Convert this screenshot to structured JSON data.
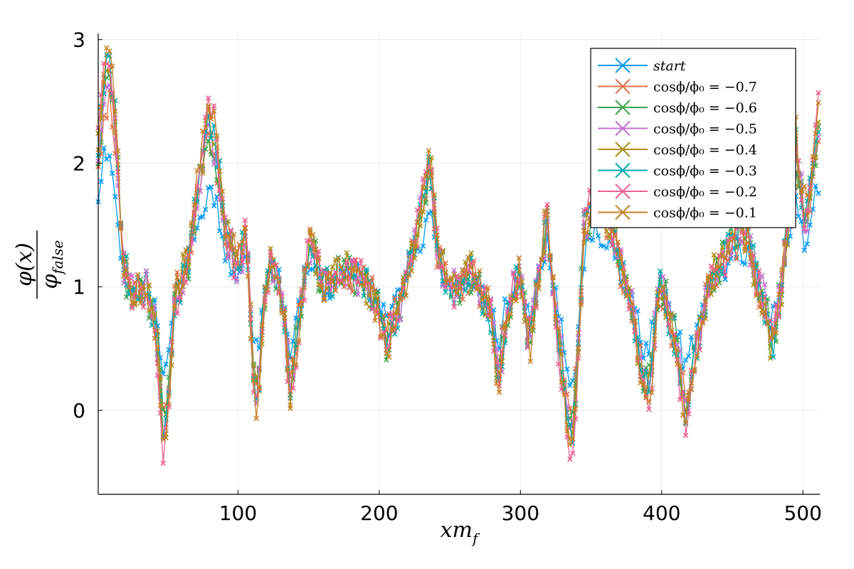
{
  "chart_data": {
    "type": "line",
    "markers": "x",
    "xlabel": "xm_f",
    "ylabel": "φ(x) / φ_false",
    "xlim": [
      1,
      512
    ],
    "ylim": [
      -0.68,
      3.05
    ],
    "x_ticks": [
      100,
      200,
      300,
      400,
      500
    ],
    "x_tick_labels": [
      "100",
      "200",
      "300",
      "400",
      "500"
    ],
    "y_ticks": [
      0,
      1,
      2,
      3
    ],
    "y_tick_labels": [
      "0",
      "1",
      "2",
      "3"
    ],
    "grid": true,
    "legend_position": "top-right",
    "profile_knots": {
      "x": [
        1,
        5,
        9,
        14,
        18,
        25,
        35,
        42,
        47,
        50,
        55,
        65,
        72,
        78,
        84,
        90,
        100,
        106,
        110,
        114,
        118,
        124,
        132,
        137,
        142,
        146,
        152,
        160,
        175,
        190,
        200,
        205,
        215,
        225,
        231,
        236,
        242,
        250,
        265,
        280,
        284,
        290,
        300,
        306,
        312,
        319,
        324,
        330,
        336,
        340,
        345,
        355,
        370,
        380,
        386,
        392,
        398,
        405,
        412,
        417,
        425,
        435,
        445,
        455,
        462,
        468,
        472,
        478,
        485,
        495,
        502,
        512
      ],
      "y": [
        1.9,
        2.4,
        2.5,
        2.0,
        1.2,
        0.95,
        1.0,
        0.7,
        0.0,
        0.1,
        0.9,
        1.2,
        1.7,
        2.1,
        2.0,
        1.4,
        1.1,
        1.4,
        0.55,
        0.2,
        0.9,
        1.2,
        0.85,
        0.3,
        0.6,
        1.0,
        1.35,
        1.0,
        1.1,
        1.05,
        0.8,
        0.6,
        0.9,
        1.3,
        1.6,
        1.9,
        1.2,
        0.95,
        1.1,
        0.8,
        0.3,
        0.8,
        1.1,
        0.6,
        1.0,
        1.5,
        0.9,
        0.4,
        -0.1,
        0.3,
        1.4,
        1.7,
        1.2,
        0.8,
        0.35,
        0.3,
        1.05,
        0.8,
        0.5,
        0.1,
        0.6,
        1.05,
        1.2,
        1.4,
        1.3,
        1.0,
        0.9,
        0.6,
        1.0,
        2.0,
        1.4,
        2.2
      ]
    },
    "series": [
      {
        "label": "start",
        "color": "#009AFA"
      },
      {
        "label": "cosϕ/ϕ₀ = −0.7",
        "color": "#E36F47"
      },
      {
        "label": "cosϕ/ϕ₀ = −0.6",
        "color": "#3EA44E"
      },
      {
        "label": "cosϕ/ϕ₀ = −0.5",
        "color": "#C371D2"
      },
      {
        "label": "cosϕ/ϕ₀ = −0.4",
        "color": "#AC8E18"
      },
      {
        "label": "cosϕ/ϕ₀ = −0.3",
        "color": "#00A9AD"
      },
      {
        "label": "cosϕ/ϕ₀ = −0.2",
        "color": "#ED5E93"
      },
      {
        "label": "cosϕ/ϕ₀ = −0.1",
        "color": "#C68125"
      }
    ]
  }
}
